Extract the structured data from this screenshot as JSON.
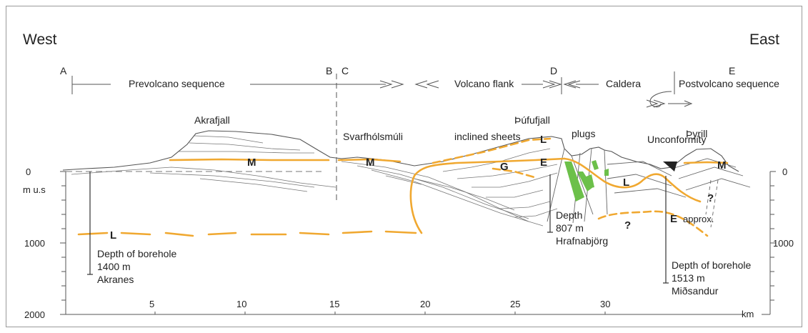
{
  "directions": {
    "west": "West",
    "east": "East"
  },
  "section_points": {
    "a": "A",
    "b": "B",
    "c": "C",
    "d": "D",
    "e": "E"
  },
  "sequences": {
    "prevolcano": "Prevolcano sequence",
    "volcano_flank": "Volcano flank",
    "caldera": "Caldera",
    "postvolcano": "Postvolcano sequence"
  },
  "places": {
    "akrafjall": "Akrafjall",
    "svarfholsmuli": "Svarfhólsmúli",
    "pufufjall": "Þúfufjall",
    "pyrill": "Þyrill"
  },
  "features": {
    "inclined_sheets": "inclined sheets",
    "plugs": "plugs",
    "unconformity": "Unconformity"
  },
  "horizons": {
    "m": "M",
    "l": "L",
    "e": "E",
    "g": "G",
    "question": "?",
    "approx": "approx."
  },
  "boreholes": {
    "akranes": {
      "line1": "Depth of borehole",
      "line2": "1400 m",
      "line3": "Akranes"
    },
    "hrafnabjorg": {
      "line1": "Depth",
      "line2": "807 m",
      "line3": "Hrafnabjörg"
    },
    "midsandur": {
      "line1": "Depth of borehole",
      "line2": "1513 m",
      "line3": "Miðsandur"
    }
  },
  "axes": {
    "left_ticks": [
      "0",
      "1000",
      "2000"
    ],
    "left_unit": "m u.s",
    "right_ticks": [
      "0",
      "1000"
    ],
    "x_ticks": [
      "5",
      "10",
      "15",
      "20",
      "25",
      "30"
    ],
    "x_unit": "km"
  },
  "colors": {
    "horizon": "#f0a830",
    "dike": "#6cc04a",
    "line": "#555555"
  }
}
